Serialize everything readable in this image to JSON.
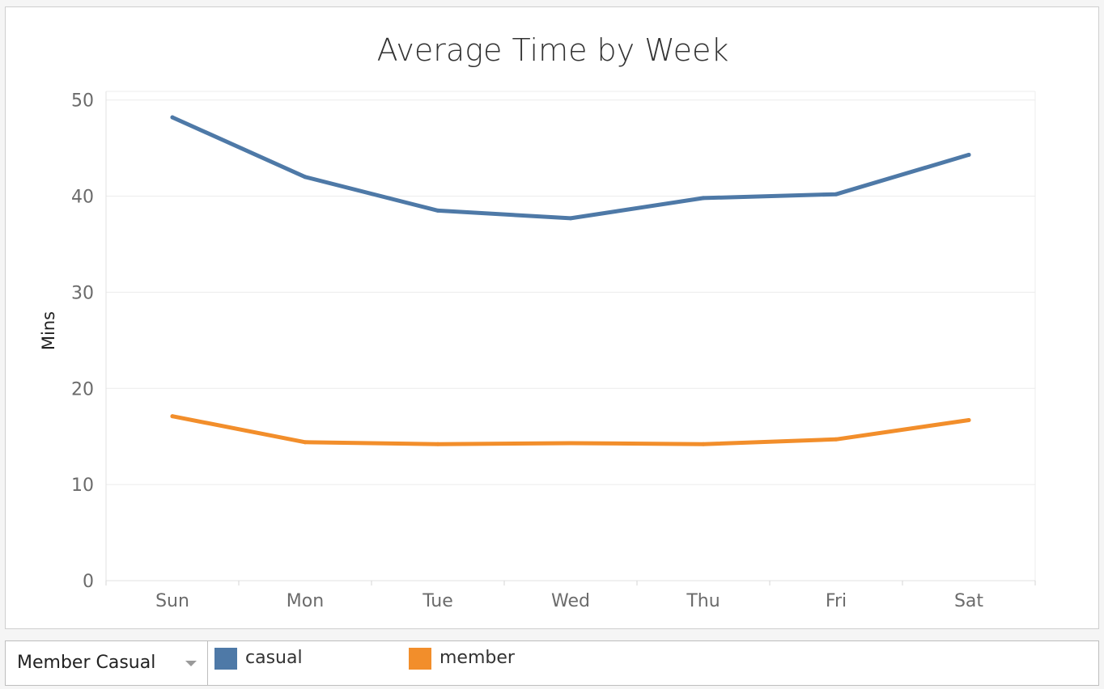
{
  "chart_data": {
    "type": "line",
    "title": "Average Time by Week",
    "xlabel": "",
    "ylabel": "Mins",
    "categories": [
      "Sun",
      "Mon",
      "Tue",
      "Wed",
      "Thu",
      "Fri",
      "Sat"
    ],
    "series": [
      {
        "name": "casual",
        "color": "#4e79a7",
        "values": [
          48.2,
          42.0,
          38.5,
          37.7,
          39.8,
          40.2,
          44.3
        ]
      },
      {
        "name": "member",
        "color": "#f28e2b",
        "values": [
          17.1,
          14.4,
          14.2,
          14.3,
          14.2,
          14.7,
          16.7
        ]
      }
    ],
    "yticks": [
      0,
      10,
      20,
      30,
      40,
      50
    ],
    "ylim": [
      0,
      50.9
    ],
    "grid": true,
    "legend_position": "bottom"
  },
  "legend": {
    "field_label": "Member Casual"
  }
}
